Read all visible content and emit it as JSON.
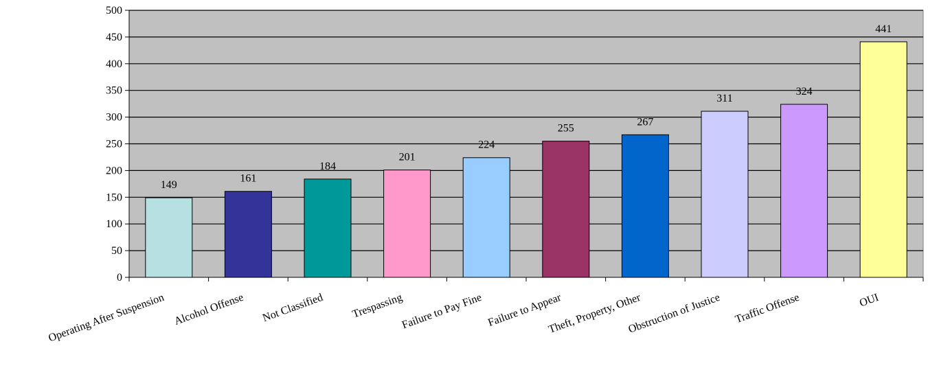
{
  "chart_data": {
    "type": "bar",
    "title": "",
    "xlabel": "",
    "ylabel": "",
    "ylim": [
      0,
      500
    ],
    "yticks": [
      0,
      50,
      100,
      150,
      200,
      250,
      300,
      350,
      400,
      450,
      500
    ],
    "grid": true,
    "legend": "none",
    "plot_background": "#C0C0C0",
    "categories": [
      "Operating After Suspension",
      "Alcohol Offense",
      "Not Classified",
      "Trespassing",
      "Failure to Pay Fine",
      "Failure to Appear",
      "Theft, Property, Other",
      "Obstruction of Justice",
      "Traffic Offense",
      "OUI"
    ],
    "values": [
      149,
      161,
      184,
      201,
      224,
      255,
      267,
      311,
      324,
      441
    ],
    "colors": [
      "#B7E0E3",
      "#333399",
      "#009999",
      "#FF99CC",
      "#99CCFF",
      "#993366",
      "#0066CC",
      "#CCCCFF",
      "#CC99FF",
      "#FFFF99"
    ]
  }
}
